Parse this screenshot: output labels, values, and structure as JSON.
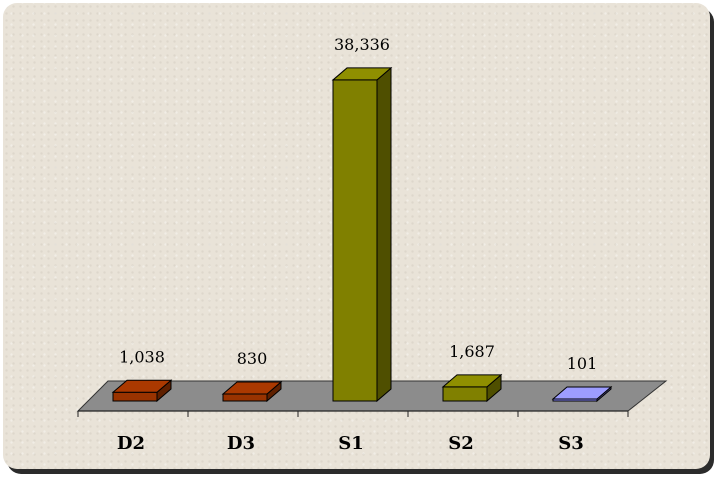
{
  "chart_data": {
    "type": "bar",
    "categories": [
      "D2",
      "D3",
      "S1",
      "S2",
      "S3"
    ],
    "values": [
      1038,
      830,
      38336,
      1687,
      101
    ],
    "value_labels": [
      "1,038",
      "830",
      "38,336",
      "1,687",
      "101"
    ],
    "colors": [
      "#993300",
      "#993300",
      "#808000",
      "#808000",
      "#8c8cff"
    ],
    "title": "",
    "xlabel": "",
    "ylabel": "",
    "ylim": [
      0,
      40000
    ],
    "grid": false,
    "legend": "none",
    "style": "3d-bar"
  }
}
